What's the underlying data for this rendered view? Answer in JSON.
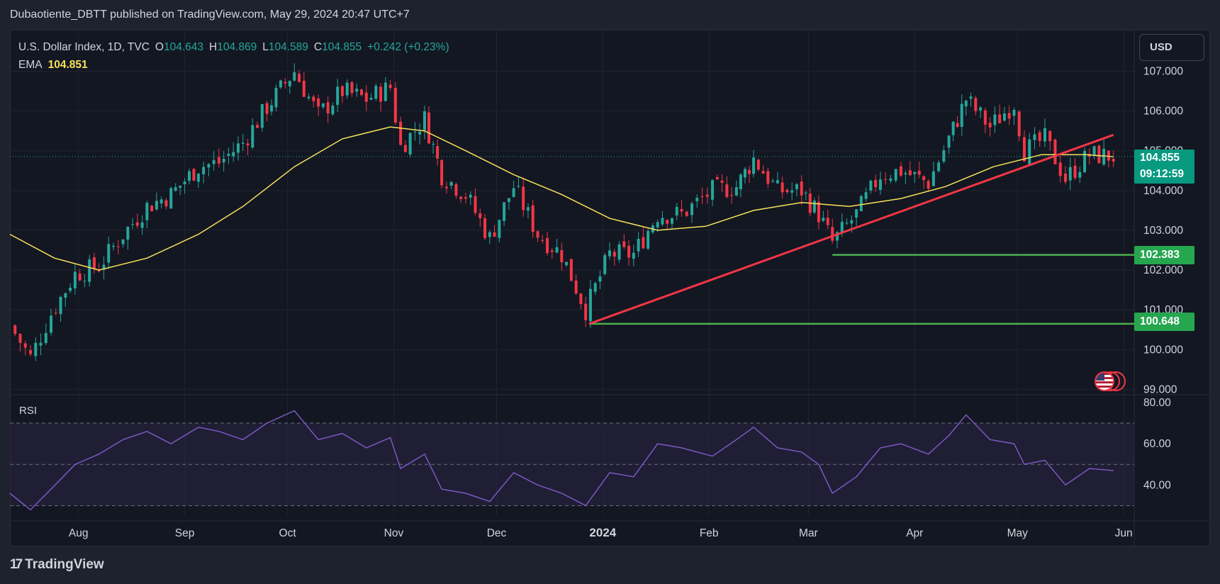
{
  "header": {
    "publisher_line": "Dubaotiente_DBTT published on TradingView.com, May 29, 2024 20:47 UTC+7"
  },
  "legend": {
    "symbol": "U.S. Dollar Index, 1D, TVC",
    "open_label": "O",
    "open": "104.643",
    "high_label": "H",
    "high": "104.869",
    "low_label": "L",
    "low": "104.589",
    "close_label": "C",
    "close": "104.855",
    "change": "+0.242 (+0.23%)",
    "ema_label": "EMA",
    "ema_value": "104.851"
  },
  "currency_button": {
    "label": "USD"
  },
  "price_tag": {
    "price": "104.855",
    "countdown": "09:12:59"
  },
  "support_tags": {
    "upper": "102.383",
    "lower": "100.648"
  },
  "rsi_title": "RSI",
  "branding": {
    "logo_text": "TradingView",
    "logo_mark": "17"
  },
  "colors": {
    "up": "#26a69a",
    "down": "#f23645",
    "ema": "#f7e15a",
    "trendline": "#f23645",
    "support": "#4caf50",
    "rsi": "#7e57c2",
    "background": "#131722"
  },
  "icons": {
    "event_badge": "us-flag-icon"
  },
  "chart_data": [
    {
      "type": "candlestick",
      "title": "U.S. Dollar Index, 1D, TVC",
      "x_ticks": [
        "Aug",
        "Sep",
        "Oct",
        "Nov",
        "Dec",
        "2024",
        "Feb",
        "Mar",
        "Apr",
        "May",
        "Jun"
      ],
      "y_ticks": [
        "107.000",
        "106.000",
        "105.000",
        "104.000",
        "103.000",
        "102.000",
        "101.000",
        "100.000",
        "99.000"
      ],
      "ylim": [
        98.9,
        107.9
      ],
      "x_range": [
        "2023-07-12",
        "2024-06-02"
      ],
      "close_series": [
        [
          "2023-07-12",
          100.6
        ],
        [
          "2023-07-18",
          99.8
        ],
        [
          "2023-07-24",
          100.9
        ],
        [
          "2023-07-31",
          101.9
        ],
        [
          "2023-08-07",
          102.1
        ],
        [
          "2023-08-14",
          102.9
        ],
        [
          "2023-08-21",
          103.6
        ],
        [
          "2023-08-28",
          103.9
        ],
        [
          "2023-09-05",
          104.6
        ],
        [
          "2023-09-11",
          104.7
        ],
        [
          "2023-09-18",
          105.2
        ],
        [
          "2023-09-25",
          106.1
        ],
        [
          "2023-10-03",
          107.0
        ],
        [
          "2023-10-10",
          105.9
        ],
        [
          "2023-10-17",
          106.5
        ],
        [
          "2023-10-24",
          106.3
        ],
        [
          "2023-10-31",
          106.6
        ],
        [
          "2023-11-03",
          105.1
        ],
        [
          "2023-11-10",
          105.8
        ],
        [
          "2023-11-15",
          104.4
        ],
        [
          "2023-11-22",
          103.9
        ],
        [
          "2023-11-29",
          102.8
        ],
        [
          "2023-12-06",
          104.1
        ],
        [
          "2023-12-13",
          102.9
        ],
        [
          "2023-12-20",
          102.4
        ],
        [
          "2023-12-27",
          101.0
        ],
        [
          "2024-01-03",
          102.4
        ],
        [
          "2024-01-10",
          102.4
        ],
        [
          "2024-01-17",
          103.4
        ],
        [
          "2024-01-24",
          103.4
        ],
        [
          "2024-02-02",
          104.0
        ],
        [
          "2024-02-09",
          104.1
        ],
        [
          "2024-02-14",
          104.8
        ],
        [
          "2024-02-21",
          104.0
        ],
        [
          "2024-02-28",
          104.0
        ],
        [
          "2024-03-04",
          103.4
        ],
        [
          "2024-03-08",
          102.7
        ],
        [
          "2024-03-15",
          103.4
        ],
        [
          "2024-03-22",
          104.4
        ],
        [
          "2024-03-28",
          104.5
        ],
        [
          "2024-04-05",
          104.2
        ],
        [
          "2024-04-11",
          105.3
        ],
        [
          "2024-04-16",
          106.3
        ],
        [
          "2024-04-23",
          105.6
        ],
        [
          "2024-04-30",
          106.2
        ],
        [
          "2024-05-03",
          105.0
        ],
        [
          "2024-05-09",
          105.3
        ],
        [
          "2024-05-15",
          104.3
        ],
        [
          "2024-05-22",
          104.9
        ],
        [
          "2024-05-29",
          104.855
        ]
      ],
      "ema": [
        [
          "2023-07-12",
          102.9
        ],
        [
          "2023-07-25",
          102.3
        ],
        [
          "2023-08-07",
          102.0
        ],
        [
          "2023-08-21",
          102.3
        ],
        [
          "2023-09-05",
          102.9
        ],
        [
          "2023-09-18",
          103.6
        ],
        [
          "2023-10-03",
          104.6
        ],
        [
          "2023-10-17",
          105.3
        ],
        [
          "2023-10-31",
          105.6
        ],
        [
          "2023-11-10",
          105.5
        ],
        [
          "2023-11-22",
          105.0
        ],
        [
          "2023-12-06",
          104.4
        ],
        [
          "2023-12-20",
          103.9
        ],
        [
          "2024-01-03",
          103.3
        ],
        [
          "2024-01-17",
          103.0
        ],
        [
          "2024-01-31",
          103.1
        ],
        [
          "2024-02-14",
          103.5
        ],
        [
          "2024-02-28",
          103.7
        ],
        [
          "2024-03-13",
          103.6
        ],
        [
          "2024-03-28",
          103.8
        ],
        [
          "2024-04-10",
          104.1
        ],
        [
          "2024-04-24",
          104.6
        ],
        [
          "2024-05-08",
          104.9
        ],
        [
          "2024-05-21",
          104.9
        ],
        [
          "2024-05-29",
          104.851
        ]
      ],
      "trendline": {
        "from": [
          "2023-12-28",
          100.648
        ],
        "to": [
          "2024-05-29",
          105.4
        ]
      },
      "support_lines": [
        {
          "from": "2023-12-28",
          "value": 100.648
        },
        {
          "from": "2024-03-08",
          "value": 102.383
        }
      ],
      "last_price": 104.855
    },
    {
      "type": "line",
      "title": "RSI",
      "y_ticks": [
        "80.00",
        "60.00",
        "40.00"
      ],
      "ylim": [
        25,
        81
      ],
      "band": [
        30,
        70
      ],
      "midline": 50,
      "series": [
        [
          "2023-07-12",
          36
        ],
        [
          "2023-07-18",
          28
        ],
        [
          "2023-07-24",
          38
        ],
        [
          "2023-07-31",
          50
        ],
        [
          "2023-08-07",
          55
        ],
        [
          "2023-08-14",
          62
        ],
        [
          "2023-08-21",
          66
        ],
        [
          "2023-08-28",
          60
        ],
        [
          "2023-09-05",
          68
        ],
        [
          "2023-09-11",
          66
        ],
        [
          "2023-09-18",
          62
        ],
        [
          "2023-09-25",
          70
        ],
        [
          "2023-10-03",
          76
        ],
        [
          "2023-10-10",
          62
        ],
        [
          "2023-10-17",
          65
        ],
        [
          "2023-10-24",
          58
        ],
        [
          "2023-10-31",
          63
        ],
        [
          "2023-11-03",
          48
        ],
        [
          "2023-11-10",
          55
        ],
        [
          "2023-11-15",
          38
        ],
        [
          "2023-11-22",
          36
        ],
        [
          "2023-11-29",
          32
        ],
        [
          "2023-12-06",
          46
        ],
        [
          "2023-12-13",
          40
        ],
        [
          "2023-12-20",
          36
        ],
        [
          "2023-12-27",
          30
        ],
        [
          "2024-01-03",
          46
        ],
        [
          "2024-01-10",
          44
        ],
        [
          "2024-01-17",
          60
        ],
        [
          "2024-01-24",
          58
        ],
        [
          "2024-02-02",
          54
        ],
        [
          "2024-02-09",
          62
        ],
        [
          "2024-02-14",
          68
        ],
        [
          "2024-02-21",
          58
        ],
        [
          "2024-02-28",
          56
        ],
        [
          "2024-03-04",
          50
        ],
        [
          "2024-03-08",
          36
        ],
        [
          "2024-03-15",
          44
        ],
        [
          "2024-03-22",
          58
        ],
        [
          "2024-03-28",
          60
        ],
        [
          "2024-04-05",
          55
        ],
        [
          "2024-04-11",
          64
        ],
        [
          "2024-04-16",
          74
        ],
        [
          "2024-04-23",
          62
        ],
        [
          "2024-04-30",
          60
        ],
        [
          "2024-05-03",
          50
        ],
        [
          "2024-05-09",
          52
        ],
        [
          "2024-05-15",
          40
        ],
        [
          "2024-05-22",
          48
        ],
        [
          "2024-05-29",
          47
        ]
      ]
    }
  ]
}
